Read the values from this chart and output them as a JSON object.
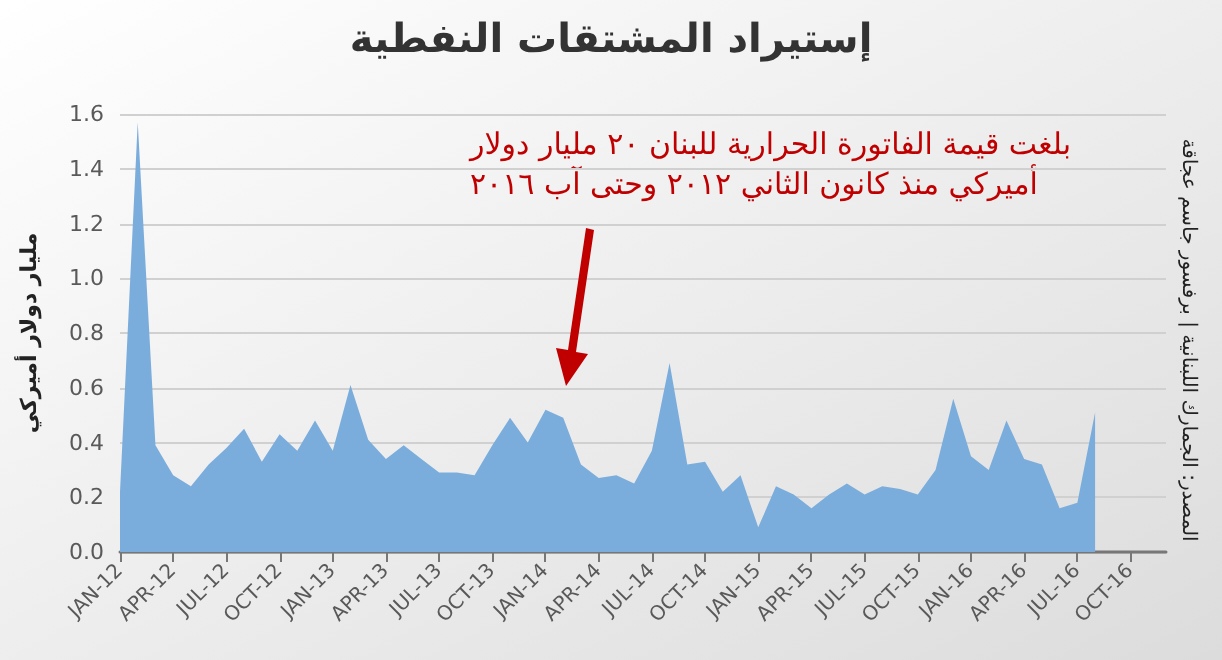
{
  "chart_data": {
    "type": "area",
    "title": "إستيراد المشتقات النفطية",
    "ylabel": "مليار دولار أميركي",
    "annotations": [
      "بلغت قيمة الفاتورة الحرارية للبنان ٢٠ مليار دولار\nأميركي منذ كانون الثاني ٢٠١٢ وحتى آب ٢٠١٦",
      "المصدر: الجمارك اللبنانية | برفسور جاسم عجاقة"
    ],
    "categories": [
      "JAN-12",
      null,
      null,
      "APR-12",
      null,
      null,
      "JUL-12",
      null,
      null,
      "OCT-12",
      null,
      null,
      "JAN-13",
      null,
      null,
      "APR-13",
      null,
      null,
      "JUL-13",
      null,
      null,
      "OCT-13",
      null,
      null,
      "JAN-14",
      null,
      null,
      "APR-14",
      null,
      null,
      "JUL-14",
      null,
      null,
      "OCT-14",
      null,
      null,
      "JAN-15",
      null,
      null,
      "APR-15",
      null,
      null,
      "JUL-15",
      null,
      null,
      "OCT-15",
      null,
      null,
      "JAN-16",
      null,
      null,
      "APR-16",
      null,
      null,
      "JUL-16",
      null,
      null,
      "OCT-16",
      null,
      null
    ],
    "series": [
      {
        "color": "#7aaddc",
        "values": [
          0.22,
          1.57,
          0.39,
          0.28,
          0.24,
          0.32,
          0.38,
          0.45,
          0.33,
          0.43,
          0.37,
          0.48,
          0.37,
          0.61,
          0.41,
          0.34,
          0.39,
          0.34,
          0.29,
          0.29,
          0.28,
          0.39,
          0.49,
          0.4,
          0.52,
          0.49,
          0.32,
          0.27,
          0.28,
          0.25,
          0.37,
          0.69,
          0.32,
          0.33,
          0.22,
          0.28,
          0.09,
          0.24,
          0.21,
          0.16,
          0.21,
          0.25,
          0.21,
          0.24,
          0.23,
          0.21,
          0.3,
          0.56,
          0.35,
          0.3,
          0.48,
          0.34,
          0.32,
          0.16,
          0.18,
          0.51,
          null,
          null,
          null,
          null
        ]
      }
    ],
    "ylim": [
      0,
      1.6
    ],
    "yticks": [
      {
        "value": 0,
        "label": "0.0"
      },
      0.2,
      0.4,
      0.6,
      0.8,
      {
        "value": 1,
        "label": "1.0"
      },
      1.2,
      1.4,
      1.6
    ],
    "grid": "y",
    "marker": "none"
  }
}
